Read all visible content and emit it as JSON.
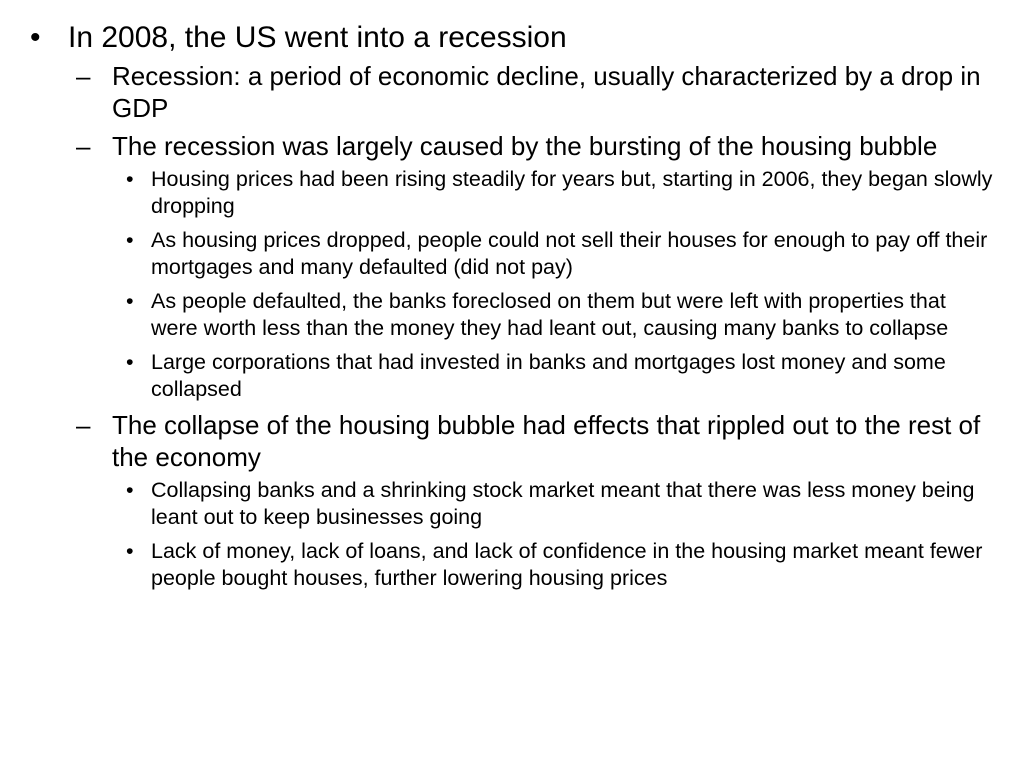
{
  "slide": {
    "bullets": {
      "main": {
        "text": "In 2008, the US went into a recession",
        "marker": "•",
        "children": [
          {
            "text": "Recession: a period of economic decline, usually characterized by a drop in GDP",
            "marker": "–"
          },
          {
            "text": "The recession was largely caused by the bursting of the housing bubble",
            "marker": "–",
            "children": [
              {
                "text": "Housing prices had been rising steadily for years but, starting in 2006, they began slowly dropping",
                "marker": "•"
              },
              {
                "text": "As housing prices dropped, people could not sell their houses for enough to pay off their mortgages and many defaulted (did not pay)",
                "marker": "•"
              },
              {
                "text": "As people defaulted, the banks foreclosed on them but were left with properties that were worth less than the money they had leant out, causing many banks to collapse",
                "marker": "•"
              },
              {
                "text": "Large corporations that had invested in banks and mortgages lost money and some collapsed",
                "marker": "•"
              }
            ]
          },
          {
            "text": "The collapse of the housing bubble had effects that rippled out to the rest of the economy",
            "marker": "–",
            "children": [
              {
                "text": "Collapsing banks and a shrinking stock market meant that there was less money being leant out to keep businesses going",
                "marker": "•"
              },
              {
                "text": "Lack of money, lack of loans, and lack of confidence in the housing market meant fewer people bought houses, further lowering housing prices",
                "marker": "•"
              }
            ]
          }
        ]
      }
    }
  }
}
